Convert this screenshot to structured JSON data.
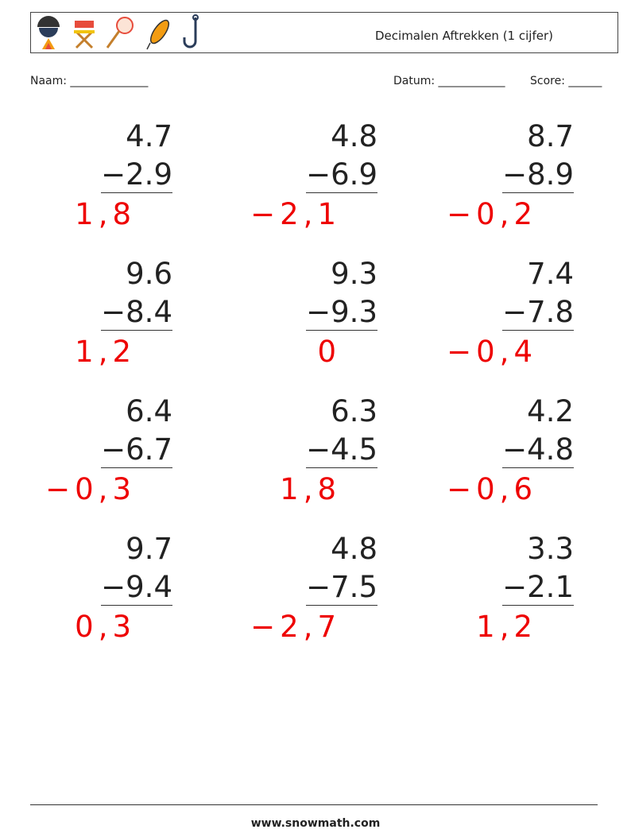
{
  "header": {
    "title": "Decimalen Aftrekken (1 cijfer)"
  },
  "fields": {
    "name": "Naam: ______________",
    "date": "Datum: ____________",
    "score": "Score: ______"
  },
  "problems": [
    {
      "top": "4.7",
      "bottom": "−2.9",
      "answer": "1,8"
    },
    {
      "top": "4.8",
      "bottom": "−6.9",
      "answer": "−2,1"
    },
    {
      "top": "8.7",
      "bottom": "−8.9",
      "answer": "−0,2"
    },
    {
      "top": "9.6",
      "bottom": "−8.4",
      "answer": "1,2"
    },
    {
      "top": "9.3",
      "bottom": "−9.3",
      "answer": "0"
    },
    {
      "top": "7.4",
      "bottom": "−7.8",
      "answer": "−0,4"
    },
    {
      "top": "6.4",
      "bottom": "−6.7",
      "answer": "−0,3"
    },
    {
      "top": "6.3",
      "bottom": "−4.5",
      "answer": "1,8"
    },
    {
      "top": "4.2",
      "bottom": "−4.8",
      "answer": "−0,6"
    },
    {
      "top": "9.7",
      "bottom": "−9.4",
      "answer": "0,3"
    },
    {
      "top": "4.8",
      "bottom": "−7.5",
      "answer": "−2,7"
    },
    {
      "top": "3.3",
      "bottom": "−2.1",
      "answer": "1,2"
    }
  ],
  "footer": {
    "site": "www.snowmath.com"
  }
}
